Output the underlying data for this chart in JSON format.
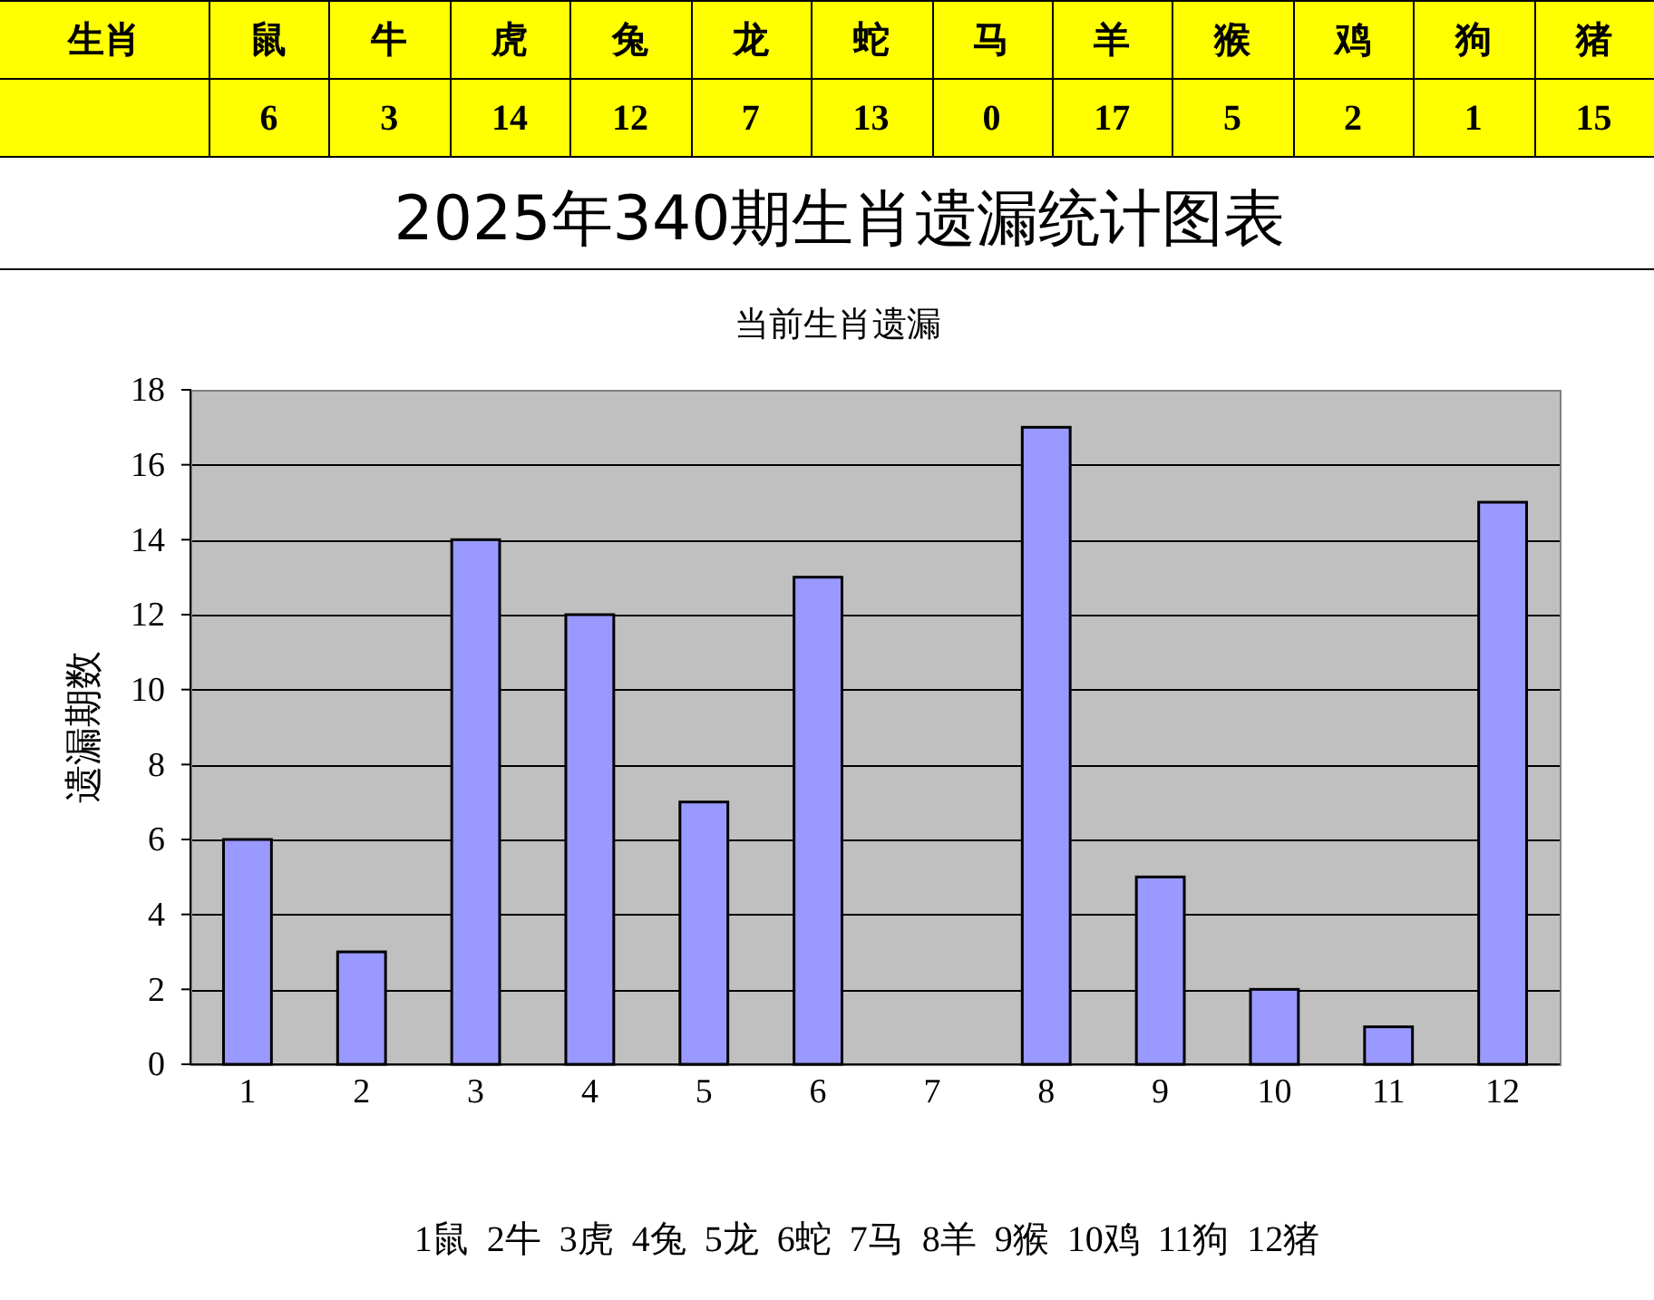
{
  "chart_data": [
    {
      "type": "other",
      "annotations": [
        "生肖"
      ],
      "categories": [
        "鼠",
        "牛",
        "虎",
        "兔",
        "龙",
        "蛇",
        "马",
        "羊",
        "猴",
        "鸡",
        "狗",
        "猪"
      ],
      "values": [
        6,
        3,
        14,
        12,
        7,
        13,
        0,
        17,
        5,
        2,
        1,
        15
      ],
      "data_labels": true
    },
    {
      "type": "bar",
      "title": "2025年340期生肖遗漏统计图表",
      "subtitle": "当前生肖遗漏",
      "ylabel": "遗漏期数",
      "categories": [
        "1",
        "2",
        "3",
        "4",
        "5",
        "6",
        "7",
        "8",
        "9",
        "10",
        "11",
        "12"
      ],
      "values": [
        6,
        3,
        14,
        12,
        7,
        13,
        0,
        17,
        5,
        2,
        1,
        15
      ],
      "color": "#9999ff",
      "ylim": [
        0,
        18
      ],
      "yticks": [
        0,
        2,
        4,
        6,
        8,
        10,
        12,
        14,
        16,
        18
      ],
      "grid": "y",
      "annotations": [
        "1鼠  2牛  3虎  4兔  5龙  6蛇  7马  8羊  9猴  10鸡  11狗  12猪"
      ]
    }
  ]
}
